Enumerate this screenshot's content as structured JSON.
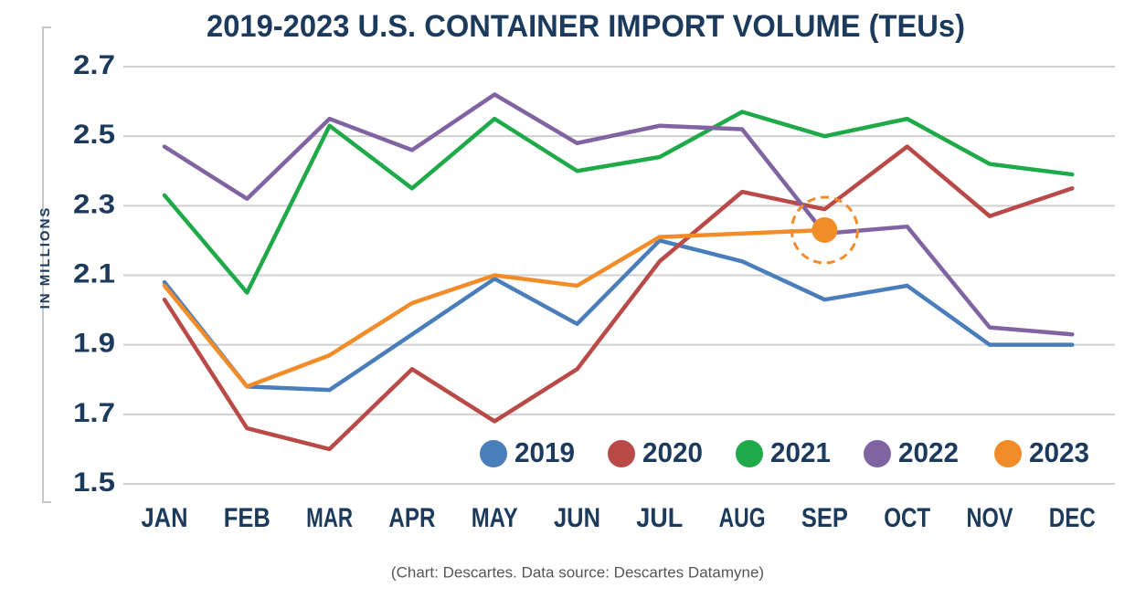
{
  "chart_data": {
    "type": "line",
    "title": "2019-2023 U.S. CONTAINER IMPORT VOLUME (TEUs)",
    "y_label": "IN MILLIONS",
    "caption": "(Chart: Descartes. Data source: Descartes Datamyne)",
    "categories": [
      "JAN",
      "FEB",
      "MAR",
      "APR",
      "MAY",
      "JUN",
      "JUL",
      "AUG",
      "SEP",
      "OCT",
      "NOV",
      "DEC"
    ],
    "ylim": [
      1.5,
      2.7
    ],
    "yticks": [
      1.5,
      1.7,
      1.9,
      2.1,
      2.3,
      2.5,
      2.7
    ],
    "grid": true,
    "legend": "bottom-right",
    "series": [
      {
        "name": "2019",
        "color": "#4a7ebb",
        "values": [
          2.08,
          1.78,
          1.77,
          1.93,
          2.09,
          1.96,
          2.2,
          2.14,
          2.03,
          2.07,
          1.9,
          1.9
        ]
      },
      {
        "name": "2020",
        "color": "#b94a48",
        "values": [
          2.03,
          1.66,
          1.6,
          1.83,
          1.68,
          1.83,
          2.14,
          2.34,
          2.29,
          2.47,
          2.27,
          2.35
        ]
      },
      {
        "name": "2021",
        "color": "#1faa4a",
        "values": [
          2.33,
          2.05,
          2.53,
          2.35,
          2.55,
          2.4,
          2.44,
          2.57,
          2.5,
          2.55,
          2.42,
          2.39
        ]
      },
      {
        "name": "2022",
        "color": "#8064a2",
        "values": [
          2.47,
          2.32,
          2.55,
          2.46,
          2.62,
          2.48,
          2.53,
          2.52,
          2.22,
          2.24,
          1.95,
          1.93
        ]
      },
      {
        "name": "2023",
        "color": "#f28c28",
        "values": [
          2.07,
          1.78,
          1.87,
          2.02,
          2.1,
          2.07,
          2.21,
          2.22,
          2.23,
          null,
          null,
          null
        ]
      }
    ]
  }
}
